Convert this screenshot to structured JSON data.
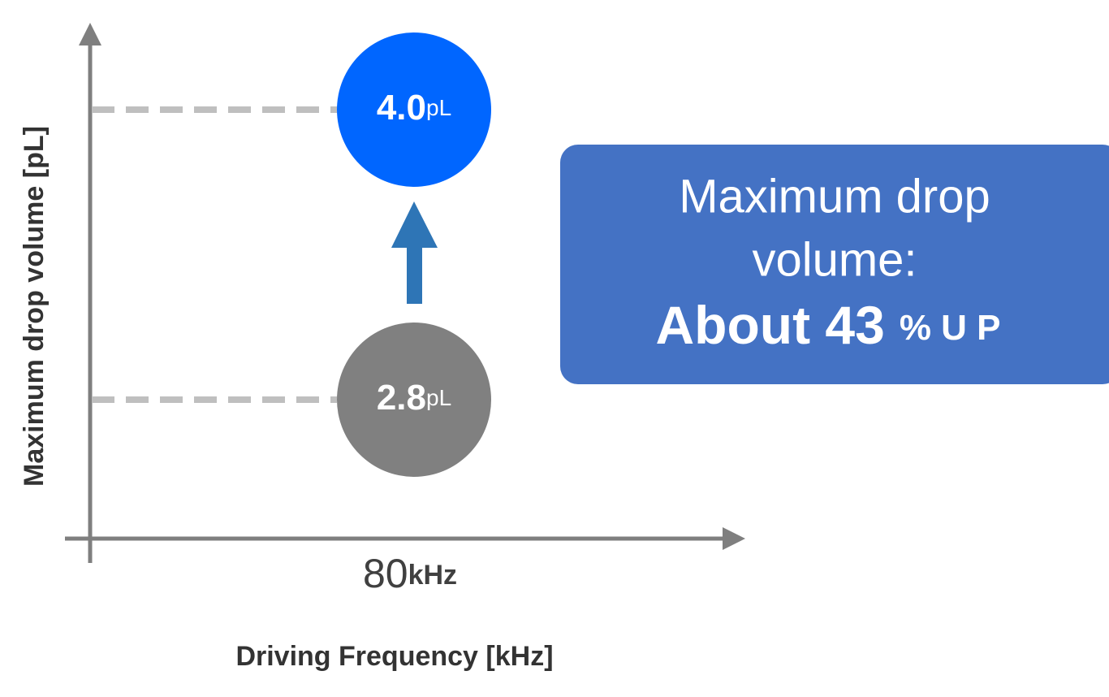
{
  "diagram": {
    "y_axis_label": "Maximum drop volume [pL]",
    "x_axis_label": "Driving Frequency [kHz]",
    "x_point": {
      "value": "80",
      "unit": "kHz"
    },
    "drops": [
      {
        "value": "4.0",
        "unit": "pL"
      },
      {
        "value": "2.8",
        "unit": "pL"
      }
    ],
    "callout": {
      "line1": "Maximum drop",
      "line2": "volume:",
      "line3_main": "About 43",
      "line3_suffix": "% U P"
    }
  }
}
